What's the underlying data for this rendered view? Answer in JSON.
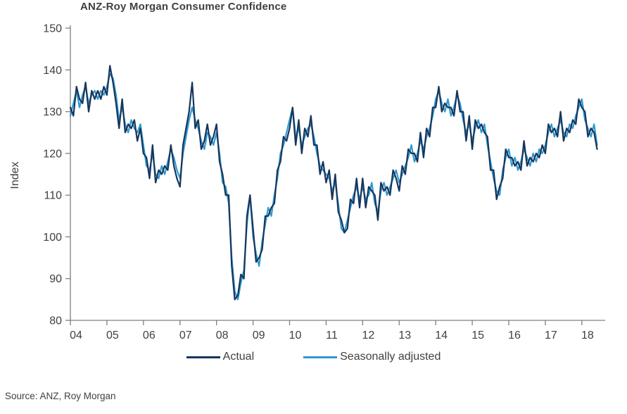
{
  "title": "ANZ-Roy Morgan Consumer Confidence",
  "source": "Source: ANZ, Roy Morgan",
  "legend": {
    "actual_label": "Actual",
    "seasonal_label": "Seasonally adjusted"
  },
  "colors": {
    "actual": "#17365d",
    "seasonal": "#2e9ad0",
    "axis": "#808080",
    "text": "#404040"
  },
  "chart_data": {
    "type": "line",
    "title": "ANZ-Roy Morgan Consumer Confidence",
    "xlabel": "",
    "ylabel": "Index",
    "ylim": [
      80,
      150
    ],
    "yticks": [
      80,
      90,
      100,
      110,
      120,
      130,
      140,
      150
    ],
    "xlim": [
      2004,
      2018.6
    ],
    "xticks": [
      2004,
      2005,
      2006,
      2007,
      2008,
      2009,
      2010,
      2011,
      2012,
      2013,
      2014,
      2015,
      2016,
      2017,
      2018
    ],
    "xtick_labels": [
      "04",
      "05",
      "06",
      "07",
      "08",
      "09",
      "10",
      "11",
      "12",
      "13",
      "14",
      "15",
      "16",
      "17",
      "18"
    ],
    "x_start": 2004.0,
    "x_frequency": "monthly",
    "grid": false,
    "legend_position": "bottom",
    "series": [
      {
        "name": "Actual",
        "color": "#17365d",
        "values": [
          131,
          129,
          136,
          133,
          132,
          137,
          130,
          135,
          133,
          135,
          133,
          136,
          134,
          141,
          137,
          132,
          126,
          133,
          125,
          127,
          126,
          128,
          123,
          126,
          120,
          119,
          114,
          122,
          113,
          116,
          115,
          117,
          116,
          122,
          117,
          114,
          112,
          122,
          126,
          130,
          137,
          126,
          128,
          121,
          123,
          127,
          122,
          124,
          127,
          118,
          115,
          110,
          110,
          93,
          85,
          86,
          91,
          90,
          105,
          110,
          102,
          94,
          95,
          97,
          105,
          105,
          107,
          108,
          116,
          118,
          124,
          123,
          126,
          131,
          122,
          128,
          120,
          126,
          124,
          129,
          122,
          122,
          115,
          118,
          113,
          116,
          109,
          115,
          106,
          104,
          101,
          102,
          109,
          108,
          114,
          107,
          114,
          107,
          112,
          111,
          110,
          104,
          113,
          111,
          112,
          110,
          116,
          114,
          111,
          117,
          115,
          121,
          120,
          120,
          118,
          125,
          119,
          126,
          124,
          131,
          131,
          136,
          130,
          132,
          131,
          131,
          129,
          135,
          130,
          130,
          123,
          129,
          121,
          128,
          126,
          127,
          125,
          124,
          116,
          116,
          109,
          112,
          114,
          121,
          119,
          119,
          117,
          118,
          116,
          123,
          117,
          119,
          118,
          120,
          119,
          122,
          120,
          127,
          125,
          126,
          124,
          130,
          123,
          126,
          125,
          128,
          127,
          133,
          131,
          130,
          124,
          126,
          125,
          121
        ]
      },
      {
        "name": "Seasonally adjusted",
        "color": "#2e9ad0",
        "values": [
          129,
          132,
          135,
          131,
          134,
          136,
          132,
          134,
          135,
          133,
          135,
          134,
          136,
          139,
          138,
          134,
          128,
          131,
          127,
          125,
          128,
          126,
          125,
          127,
          122,
          117,
          116,
          120,
          115,
          114,
          117,
          115,
          118,
          121,
          119,
          116,
          114,
          120,
          124,
          128,
          131,
          128,
          126,
          123,
          121,
          125,
          124,
          122,
          125,
          120,
          113,
          112,
          108,
          95,
          87,
          85,
          89,
          92,
          103,
          110,
          100,
          96,
          93,
          99,
          103,
          107,
          105,
          110,
          114,
          120,
          122,
          125,
          128,
          131,
          124,
          126,
          122,
          124,
          126,
          127,
          124,
          120,
          117,
          116,
          115,
          114,
          111,
          113,
          108,
          102,
          101,
          104,
          107,
          110,
          112,
          109,
          112,
          109,
          110,
          113,
          108,
          106,
          111,
          113,
          110,
          112,
          114,
          116,
          113,
          115,
          117,
          119,
          122,
          118,
          120,
          123,
          121,
          124,
          126,
          129,
          133,
          135,
          132,
          130,
          133,
          129,
          131,
          134,
          132,
          128,
          125,
          127,
          123,
          126,
          128,
          125,
          127,
          122,
          118,
          114,
          111,
          110,
          116,
          119,
          121,
          117,
          119,
          116,
          118,
          121,
          119,
          117,
          120,
          118,
          121,
          120,
          122,
          125,
          127,
          124,
          126,
          128,
          125,
          124,
          127,
          126,
          129,
          131,
          133,
          128,
          126,
          124,
          127,
          122
        ]
      }
    ]
  }
}
